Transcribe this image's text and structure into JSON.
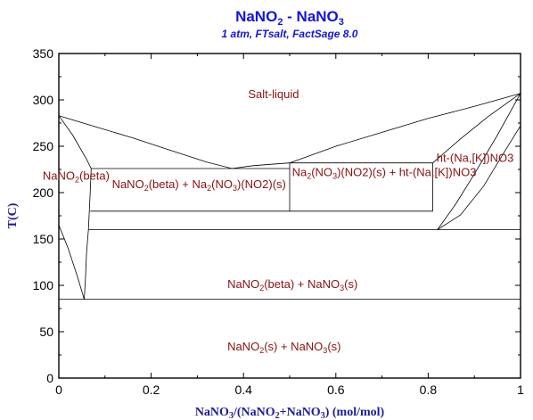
{
  "chart_data": {
    "type": "line",
    "title": {
      "main": "NaNO",
      "sub1": "2",
      "mid": " - NaNO",
      "sub2": "3"
    },
    "subtitle": "1 atm, FTsalt, FactSage 8.0",
    "xlabel": {
      "p1": "NaNO",
      "s1": "3",
      "p2": "/(NaNO",
      "s2": "2",
      "p3": "+NaNO",
      "s3": "3",
      "p4": ") (mol/mol)"
    },
    "ylabel": "T(C)",
    "xlim": [
      0,
      1
    ],
    "ylim": [
      0,
      350
    ],
    "xticks": [
      "0",
      "0.2",
      "0.4",
      "0.6",
      "0.8",
      "1"
    ],
    "xtick_values": [
      0,
      0.2,
      0.4,
      0.6,
      0.8,
      1
    ],
    "yticks": [
      "0",
      "50",
      "100",
      "150",
      "200",
      "250",
      "300",
      "350"
    ],
    "ytick_values": [
      0,
      50,
      100,
      150,
      200,
      250,
      300,
      350
    ],
    "grid": false,
    "colors": {
      "title": "#1414e0",
      "axis_label": "#1c1c9a",
      "region_label": "#8b1010",
      "lines": "#000000"
    },
    "curves": [
      {
        "name": "liquidus-left",
        "x": [
          0.0,
          0.08,
          0.16,
          0.24,
          0.32,
          0.375
        ],
        "y": [
          283,
          271,
          259,
          246,
          233,
          226
        ]
      },
      {
        "name": "liquidus-mid",
        "x": [
          0.375,
          0.42,
          0.47,
          0.5
        ],
        "y": [
          226,
          229,
          231,
          232
        ]
      },
      {
        "name": "liquidus-right",
        "x": [
          0.5,
          0.6,
          0.7,
          0.8,
          0.9,
          1.0
        ],
        "y": [
          232,
          250,
          265,
          280,
          293,
          307
        ]
      },
      {
        "name": "solidus-nano2-upper",
        "x": [
          0.0,
          0.03,
          0.06,
          0.07
        ],
        "y": [
          283,
          262,
          236,
          226
        ]
      },
      {
        "name": "solvus-nano2-lower",
        "x": [
          0.07,
          0.068,
          0.066,
          0.064
        ],
        "y": [
          226,
          200,
          180,
          160
        ]
      },
      {
        "name": "solvus-nano2-bottom",
        "x": [
          0.0,
          0.02,
          0.04,
          0.055
        ],
        "y": [
          165,
          140,
          110,
          85
        ]
      },
      {
        "name": "solvus-nano2-right",
        "x": [
          0.055,
          0.058,
          0.06,
          0.064
        ],
        "y": [
          85,
          110,
          135,
          160
        ]
      },
      {
        "name": "ht-solidus",
        "x": [
          0.82,
          0.86,
          0.9,
          0.95,
          1.0
        ],
        "y": [
          160,
          188,
          220,
          262,
          307
        ]
      },
      {
        "name": "ht-solvus",
        "x": [
          0.82,
          0.87,
          0.92,
          0.97,
          1.0
        ],
        "y": [
          160,
          176,
          207,
          248,
          272
        ]
      },
      {
        "name": "ht-liquidus-top",
        "x": [
          0.81,
          0.87,
          0.93,
          1.0
        ],
        "y": [
          232,
          258,
          282,
          307
        ]
      }
    ],
    "invariant_lines": [
      {
        "name": "eutectic-upper",
        "x": [
          0.07,
          0.5
        ],
        "y": [
          226,
          226
        ]
      },
      {
        "name": "peritectic-right",
        "x": [
          0.5,
          0.81
        ],
        "y": [
          232,
          232
        ]
      },
      {
        "name": "compound-line",
        "x": [
          0.5,
          0.5
        ],
        "y": [
          180,
          232
        ]
      },
      {
        "name": "eutectoid-180",
        "x": [
          0.068,
          0.81
        ],
        "y": [
          180,
          180
        ]
      },
      {
        "name": "ht-left-edge",
        "x": [
          0.81,
          0.81
        ],
        "y": [
          180,
          232
        ]
      },
      {
        "name": "transition-160",
        "x": [
          0.064,
          1.0
        ],
        "y": [
          160,
          160
        ]
      },
      {
        "name": "transition-85",
        "x": [
          0.0,
          1.0
        ],
        "y": [
          85,
          85
        ]
      }
    ],
    "regions": [
      {
        "name": "region-salt-liquid",
        "parts": [
          {
            "t": "Salt-liquid"
          }
        ],
        "x": 0.41,
        "y": 302
      },
      {
        "name": "region-nano2-beta",
        "parts": [
          {
            "t": "NaNO"
          },
          {
            "t": "2",
            "s": true
          },
          {
            "t": "(beta)"
          }
        ],
        "x": -0.035,
        "y": 214
      },
      {
        "name": "region-beta-plus-compound",
        "parts": [
          {
            "t": "NaNO"
          },
          {
            "t": "2",
            "s": true
          },
          {
            "t": "(beta) + Na"
          },
          {
            "t": "2",
            "s": true
          },
          {
            "t": "(NO"
          },
          {
            "t": "3",
            "s": true
          },
          {
            "t": ")(NO2)(s)"
          }
        ],
        "x": 0.115,
        "y": 205
      },
      {
        "name": "region-compound-plus-ht",
        "parts": [
          {
            "t": "Na"
          },
          {
            "t": "2",
            "s": true
          },
          {
            "t": "(NO"
          },
          {
            "t": "3",
            "s": true
          },
          {
            "t": ")(NO2)(s) + ht-(Na,[K])NO3"
          }
        ],
        "x": 0.505,
        "y": 218
      },
      {
        "name": "region-ht",
        "parts": [
          {
            "t": "ht-(Na,[K])NO3"
          }
        ],
        "x": 0.818,
        "y": 233
      },
      {
        "name": "region-beta-plus-nano3",
        "parts": [
          {
            "t": "NaNO"
          },
          {
            "t": "2",
            "s": true
          },
          {
            "t": "(beta) + NaNO"
          },
          {
            "t": "3",
            "s": true
          },
          {
            "t": "(s)"
          }
        ],
        "x": 0.365,
        "y": 97
      },
      {
        "name": "region-s-plus-nano3",
        "parts": [
          {
            "t": "NaNO"
          },
          {
            "t": "2",
            "s": true
          },
          {
            "t": "(s) + NaNO"
          },
          {
            "t": "3",
            "s": true
          },
          {
            "t": "(s)"
          }
        ],
        "x": 0.365,
        "y": 30
      }
    ]
  }
}
